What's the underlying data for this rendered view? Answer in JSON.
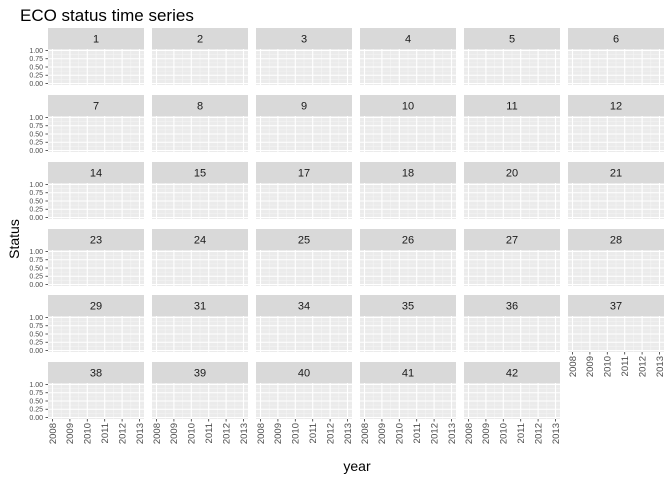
{
  "chart_data": {
    "type": "line",
    "title": "ECO status time series",
    "xlabel": "year",
    "ylabel": "Status",
    "x_ticks": [
      "2008",
      "2009",
      "2010",
      "2011",
      "2012",
      "2013"
    ],
    "y_ticks": [
      "1.00",
      "0.75",
      "0.50",
      "0.25",
      "0.00"
    ],
    "xlim": [
      2008,
      2013
    ],
    "ylim": [
      0,
      1
    ],
    "grid": true,
    "facet_columns": 6,
    "panels": [
      "1",
      "2",
      "3",
      "4",
      "5",
      "6",
      "7",
      "8",
      "9",
      "10",
      "11",
      "12",
      "14",
      "15",
      "17",
      "18",
      "20",
      "21",
      "23",
      "24",
      "25",
      "26",
      "27",
      "28",
      "29",
      "31",
      "34",
      "35",
      "36",
      "37",
      "38",
      "39",
      "40",
      "41",
      "42"
    ],
    "series": []
  },
  "colors": {
    "panel_background": "#ebebeb",
    "strip_background": "#d9d9d9",
    "grid_major": "#ffffff",
    "grid_minor": "#f5f5f5"
  }
}
